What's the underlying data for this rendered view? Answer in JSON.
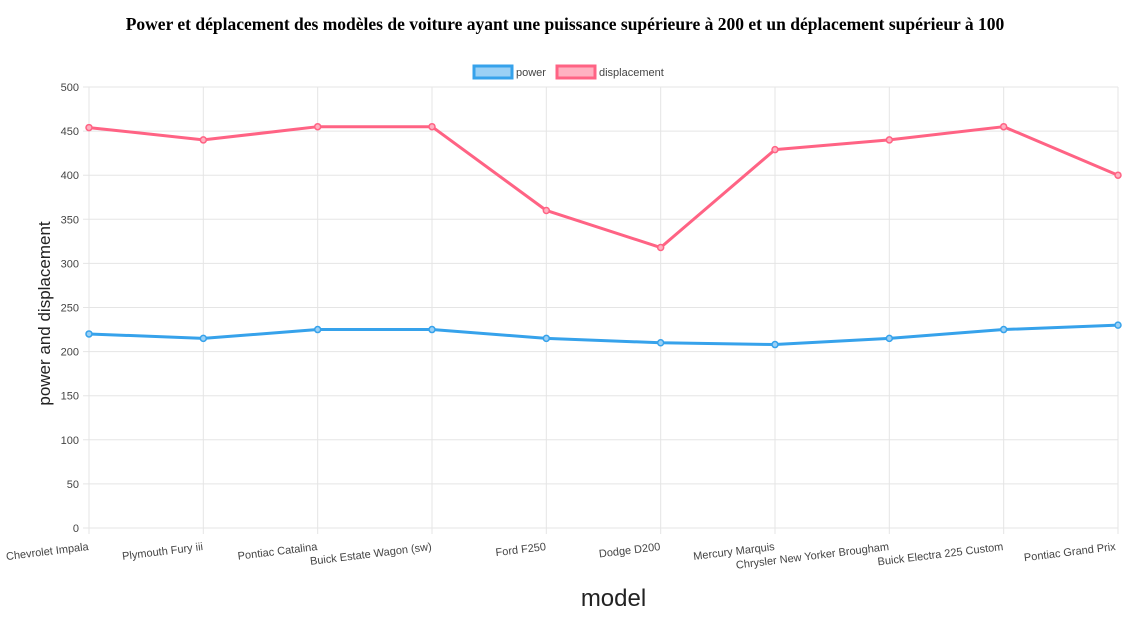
{
  "title": "Power et déplacement des modèles de voiture ayant une puissance supérieure à 200 et un déplacement supérieur à 100",
  "chart_data": {
    "type": "line",
    "title": "Power et déplacement des modèles de voiture ayant une puissance supérieure à 200 et un déplacement supérieur à 100",
    "xlabel": "model",
    "ylabel": "power and displacement",
    "ylim": [
      0,
      500
    ],
    "yticks": [
      0,
      50,
      100,
      150,
      200,
      250,
      300,
      350,
      400,
      450,
      500
    ],
    "grid": true,
    "legend_position": "top",
    "categories": [
      "Chevrolet Impala",
      "Plymouth Fury iii",
      "Pontiac Catalina",
      "Buick Estate Wagon (sw)",
      "Ford F250",
      "Dodge D200",
      "Mercury Marquis",
      "Chrysler New Yorker Brougham",
      "Buick Electra 225 Custom",
      "Pontiac Grand Prix"
    ],
    "series": [
      {
        "name": "power",
        "color": "#36a2eb",
        "fill": "#9ad0f5",
        "values": [
          220,
          215,
          225,
          225,
          215,
          210,
          208,
          215,
          225,
          230
        ]
      },
      {
        "name": "displacement",
        "color": "#ff6384",
        "fill": "#ffb1c1",
        "values": [
          454,
          440,
          455,
          455,
          360,
          318,
          429,
          440,
          455,
          400
        ]
      }
    ]
  }
}
